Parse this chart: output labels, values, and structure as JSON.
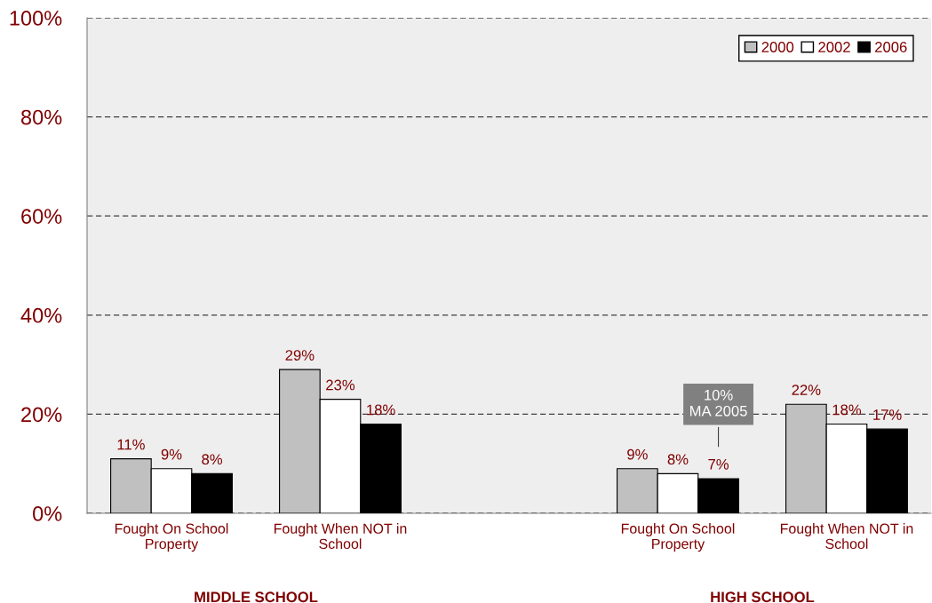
{
  "chart_data": {
    "type": "bar",
    "categories": [
      "Fought On School\nProperty",
      "Fought When NOT in\nSchool",
      null,
      "Fought On School\nProperty",
      "Fought When NOT in\nSchool"
    ],
    "series": [
      {
        "name": "2000",
        "color": "#c0c0c0",
        "values": [
          11,
          29,
          null,
          9,
          22
        ]
      },
      {
        "name": "2002",
        "color": "#ffffff",
        "values": [
          9,
          23,
          null,
          8,
          18
        ]
      },
      {
        "name": "2006",
        "color": "#000000",
        "values": [
          8,
          18,
          null,
          7,
          17
        ]
      }
    ],
    "ylim": [
      0,
      100
    ],
    "yticks": [
      {
        "value": 0,
        "label": "0%"
      },
      {
        "value": 20,
        "label": "20%"
      },
      {
        "value": 40,
        "label": "40%"
      },
      {
        "value": 60,
        "label": "60%"
      },
      {
        "value": 80,
        "label": "80%"
      },
      {
        "value": 100,
        "label": "100%"
      }
    ],
    "value_labels": [
      [
        "11%",
        "29%",
        null,
        "9%",
        "22%"
      ],
      [
        "9%",
        "23%",
        null,
        "8%",
        "18%"
      ],
      [
        "8%",
        "18%",
        null,
        "7%",
        "17%"
      ]
    ],
    "annotations": [
      "MIDDLE SCHOOL",
      "HIGH SCHOOL",
      "10%\nMA 2005"
    ],
    "grid": "y",
    "legend": "top right",
    "line_style": "dashed"
  }
}
